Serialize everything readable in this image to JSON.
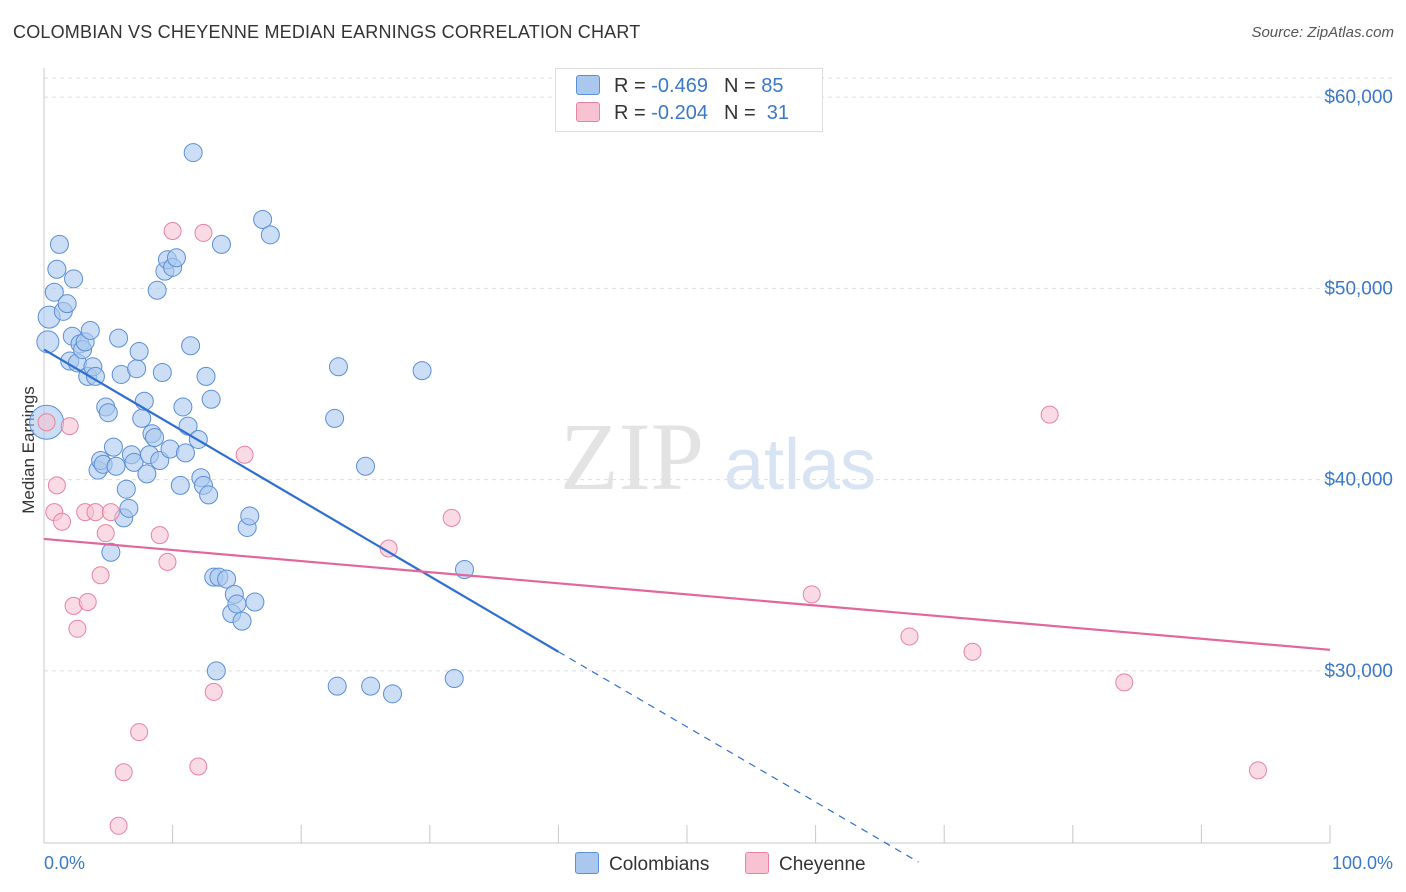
{
  "title": "COLOMBIAN VS CHEYENNE MEDIAN EARNINGS CORRELATION CHART",
  "source": "Source: ZipAtlas.com",
  "watermark": {
    "zip": "ZIP",
    "atlas": "atlas"
  },
  "legend": {
    "rows": [
      {
        "r_label": "R =",
        "r_value": "-0.469",
        "n_label": "N =",
        "n_value": "85"
      },
      {
        "r_label": "R =",
        "r_value": "-0.204",
        "n_label": "N =",
        "n_value": "31"
      }
    ]
  },
  "bottom_legend": {
    "colombians": "Colombians",
    "cheyenne": "Cheyenne"
  },
  "colors": {
    "blue_fill": "#aac8ee",
    "blue_stroke": "#5b8fd6",
    "blue_line": "#2f6fd0",
    "pink_fill": "#f7c3d3",
    "pink_stroke": "#e7839f",
    "pink_line": "#e2679a",
    "grid": "#dddddd",
    "axis_text": "#3a78c9"
  },
  "chart_data": {
    "type": "scatter",
    "title": "COLOMBIAN VS CHEYENNE MEDIAN EARNINGS CORRELATION CHART",
    "xlabel": "",
    "ylabel": "Median Earnings",
    "xlim": [
      0,
      100
    ],
    "ylim": [
      21000,
      61000
    ],
    "x_tick_labels": {
      "left": "0.0%",
      "right": "100.0%"
    },
    "y_ticks": [
      30000,
      40000,
      50000,
      60000
    ],
    "y_tick_labels": [
      "$30,000",
      "$40,000",
      "$50,000",
      "$60,000"
    ],
    "series": [
      {
        "name": "Colombians",
        "r": -0.469,
        "n": 85,
        "trend": {
          "x0": 0,
          "y0": 46800,
          "x1": 40,
          "y1": 31000,
          "dash_to_x": 68,
          "dash_to_y": 20000
        },
        "points": [
          [
            0.2,
            43000
          ],
          [
            0.3,
            47200
          ],
          [
            0.4,
            48500
          ],
          [
            0.8,
            49800
          ],
          [
            1.0,
            51000
          ],
          [
            1.2,
            52300
          ],
          [
            1.5,
            48800
          ],
          [
            1.8,
            49200
          ],
          [
            2.0,
            46200
          ],
          [
            2.2,
            47500
          ],
          [
            2.3,
            50500
          ],
          [
            2.6,
            46100
          ],
          [
            2.8,
            47100
          ],
          [
            3.0,
            46800
          ],
          [
            3.2,
            47200
          ],
          [
            3.4,
            45400
          ],
          [
            3.6,
            47800
          ],
          [
            3.8,
            45900
          ],
          [
            4.0,
            45400
          ],
          [
            4.2,
            40500
          ],
          [
            4.4,
            41000
          ],
          [
            4.6,
            40800
          ],
          [
            4.8,
            43800
          ],
          [
            5.0,
            43500
          ],
          [
            5.2,
            36200
          ],
          [
            5.4,
            41700
          ],
          [
            5.6,
            40700
          ],
          [
            5.8,
            47400
          ],
          [
            6.0,
            45500
          ],
          [
            6.2,
            38000
          ],
          [
            6.4,
            39500
          ],
          [
            6.6,
            38500
          ],
          [
            6.8,
            41300
          ],
          [
            7.0,
            40900
          ],
          [
            7.2,
            45800
          ],
          [
            7.4,
            46700
          ],
          [
            7.6,
            43200
          ],
          [
            7.8,
            44100
          ],
          [
            8.0,
            40300
          ],
          [
            8.2,
            41300
          ],
          [
            8.4,
            42400
          ],
          [
            8.6,
            42200
          ],
          [
            8.8,
            49900
          ],
          [
            9.0,
            41000
          ],
          [
            9.2,
            45600
          ],
          [
            9.4,
            50900
          ],
          [
            9.6,
            51500
          ],
          [
            9.8,
            41600
          ],
          [
            10.0,
            51100
          ],
          [
            10.3,
            51600
          ],
          [
            10.6,
            39700
          ],
          [
            10.8,
            43800
          ],
          [
            11.0,
            41400
          ],
          [
            11.2,
            42800
          ],
          [
            11.4,
            47000
          ],
          [
            11.6,
            57100
          ],
          [
            12.0,
            42100
          ],
          [
            12.2,
            40100
          ],
          [
            12.4,
            39700
          ],
          [
            12.6,
            45400
          ],
          [
            12.8,
            39200
          ],
          [
            13.0,
            44200
          ],
          [
            13.2,
            34900
          ],
          [
            13.4,
            30000
          ],
          [
            13.6,
            34900
          ],
          [
            13.8,
            52300
          ],
          [
            14.2,
            34800
          ],
          [
            14.6,
            33000
          ],
          [
            14.8,
            34000
          ],
          [
            15.0,
            33500
          ],
          [
            15.4,
            32600
          ],
          [
            15.8,
            37500
          ],
          [
            16.0,
            38100
          ],
          [
            16.4,
            33600
          ],
          [
            17.0,
            53600
          ],
          [
            17.6,
            52800
          ],
          [
            22.6,
            43200
          ],
          [
            22.8,
            29200
          ],
          [
            22.9,
            45900
          ],
          [
            25.0,
            40700
          ],
          [
            25.4,
            29200
          ],
          [
            27.1,
            28800
          ],
          [
            29.4,
            45700
          ],
          [
            31.9,
            29600
          ],
          [
            32.7,
            35300
          ]
        ]
      },
      {
        "name": "Cheyenne",
        "r": -0.204,
        "n": 31,
        "trend": {
          "x0": 0,
          "y0": 36900,
          "x1": 100,
          "y1": 31100
        },
        "points": [
          [
            0.2,
            43000
          ],
          [
            0.8,
            38300
          ],
          [
            1.0,
            39700
          ],
          [
            1.4,
            37800
          ],
          [
            2.0,
            42800
          ],
          [
            2.3,
            33400
          ],
          [
            2.6,
            32200
          ],
          [
            3.2,
            38300
          ],
          [
            3.4,
            33600
          ],
          [
            4.0,
            38300
          ],
          [
            4.4,
            35000
          ],
          [
            4.8,
            37200
          ],
          [
            5.2,
            38300
          ],
          [
            5.8,
            21900
          ],
          [
            6.2,
            24700
          ],
          [
            7.4,
            26800
          ],
          [
            9.0,
            37100
          ],
          [
            9.6,
            35700
          ],
          [
            10.0,
            53000
          ],
          [
            12.0,
            25000
          ],
          [
            12.4,
            52900
          ],
          [
            13.2,
            28900
          ],
          [
            15.6,
            41300
          ],
          [
            26.8,
            36400
          ],
          [
            31.7,
            38000
          ],
          [
            59.7,
            34000
          ],
          [
            67.3,
            31800
          ],
          [
            72.2,
            31000
          ],
          [
            78.2,
            43400
          ],
          [
            84.0,
            29400
          ],
          [
            94.4,
            24800
          ]
        ]
      }
    ]
  }
}
